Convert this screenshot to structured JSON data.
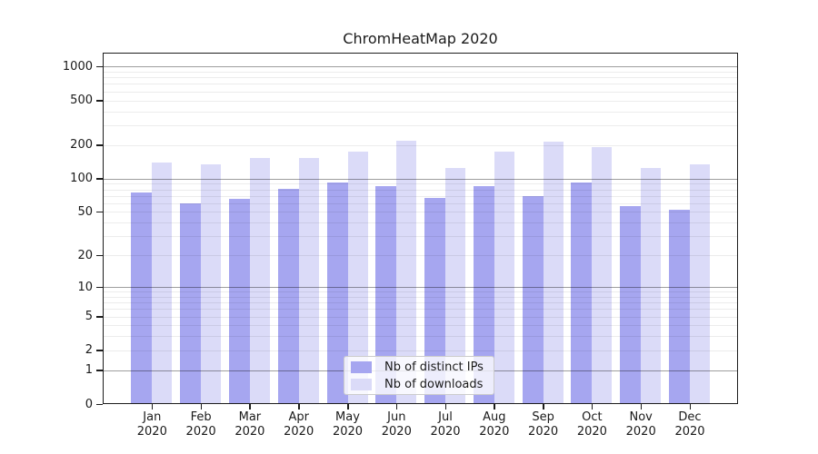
{
  "title": "ChromHeatMap 2020",
  "chart_data": {
    "type": "bar",
    "title": "ChromHeatMap 2020",
    "categories": [
      "Jan 2020",
      "Feb 2020",
      "Mar 2020",
      "Apr 2020",
      "May 2020",
      "Jun 2020",
      "Jul 2020",
      "Aug 2020",
      "Sep 2020",
      "Oct 2020",
      "Nov 2020",
      "Dec 2020"
    ],
    "series": [
      {
        "name": "Nb of distinct IPs",
        "color": "#a6a6f0",
        "values": [
          75,
          60,
          66,
          81,
          92,
          85,
          67,
          86,
          70,
          93,
          57,
          52
        ]
      },
      {
        "name": "Nb of downloads",
        "color": "#dbdbf8",
        "values": [
          139,
          134,
          152,
          152,
          174,
          218,
          124,
          173,
          216,
          193,
          124,
          134
        ]
      }
    ],
    "xlabel": "",
    "ylabel": "",
    "yscale": "pseudo-log (log10 of value+1)",
    "ylim": [
      0,
      1330
    ],
    "yticks": [
      0,
      1,
      2,
      5,
      10,
      20,
      50,
      100,
      200,
      500,
      1000
    ],
    "gridlines": {
      "major": [
        1,
        10,
        100,
        1000
      ],
      "minor": [
        2,
        3,
        4,
        5,
        6,
        7,
        8,
        9,
        20,
        30,
        40,
        50,
        60,
        70,
        80,
        90,
        200,
        300,
        400,
        500,
        600,
        700,
        800,
        900
      ]
    },
    "grid": true,
    "legend_position": "lower center",
    "bar_edge": "none"
  },
  "colors": {
    "background": "#ffffff",
    "axis": "#1c1c1c",
    "text": "#1a1a1a",
    "major_grid": "#9e9e9e",
    "minor_grid": "#ececec",
    "legend_border": "#cccccc"
  }
}
